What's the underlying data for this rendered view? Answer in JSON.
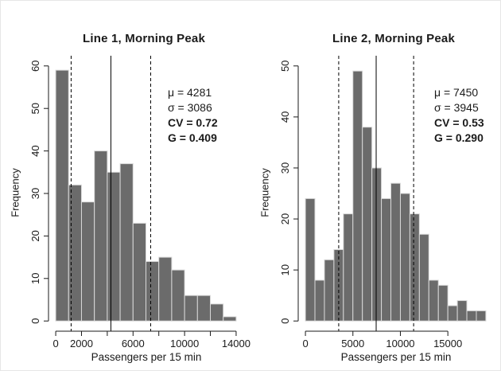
{
  "figure_name": "morning-peak-histograms",
  "colors": {
    "bar_fill": "#6b6b6b",
    "bar_border": "#d9d9d9",
    "axis": "#1a1a1a",
    "stat_line": "#000000",
    "background": "#ffffff"
  },
  "chart_data": [
    {
      "type": "bar",
      "subtype": "histogram",
      "title": "Line 1, Morning Peak",
      "xlabel": "Passengers per 15 min",
      "ylabel": "Frequency",
      "bin_start": 0,
      "bin_width": 1000,
      "counts": [
        59,
        32,
        28,
        40,
        35,
        37,
        23,
        14,
        15,
        12,
        6,
        6,
        4,
        1
      ],
      "x_data_max": 14000,
      "ylim": [
        0,
        60
      ],
      "yticks": [
        {
          "v": 0,
          "label": "0"
        },
        {
          "v": 10,
          "label": "10"
        },
        {
          "v": 20,
          "label": "20"
        },
        {
          "v": 30,
          "label": "30"
        },
        {
          "v": 40,
          "label": "40"
        },
        {
          "v": 50,
          "label": "50"
        },
        {
          "v": 60,
          "label": "60"
        }
      ],
      "xticks": [
        {
          "v": 0,
          "label": "0"
        },
        {
          "v": 2000,
          "label": "2000"
        },
        {
          "v": 4000,
          "label": ""
        },
        {
          "v": 6000,
          "label": "6000"
        },
        {
          "v": 8000,
          "label": ""
        },
        {
          "v": 10000,
          "label": "10000"
        },
        {
          "v": 12000,
          "label": ""
        },
        {
          "v": 14000,
          "label": "14000"
        }
      ],
      "mean": 4281,
      "sd": 3086,
      "stats_lines": [
        {
          "text": "μ = 4281",
          "bold": false
        },
        {
          "text": "σ = 3086",
          "bold": false
        },
        {
          "text": "CV = 0.72",
          "bold": true
        },
        {
          "text": "G = 0.409",
          "bold": true
        }
      ],
      "grid": false,
      "legend": "none"
    },
    {
      "type": "bar",
      "subtype": "histogram",
      "title": "Line 2, Morning Peak",
      "xlabel": "Passengers per 15 min",
      "ylabel": "Frequency",
      "bin_start": 0,
      "bin_width": 1000,
      "counts": [
        24,
        8,
        12,
        14,
        21,
        49,
        38,
        30,
        24,
        27,
        25,
        21,
        17,
        8,
        7,
        3,
        4,
        2,
        2
      ],
      "x_data_max": 19000,
      "ylim": [
        0,
        50
      ],
      "yticks": [
        {
          "v": 0,
          "label": "0"
        },
        {
          "v": 10,
          "label": "10"
        },
        {
          "v": 20,
          "label": "20"
        },
        {
          "v": 30,
          "label": "30"
        },
        {
          "v": 40,
          "label": "40"
        },
        {
          "v": 50,
          "label": "50"
        }
      ],
      "xticks": [
        {
          "v": 0,
          "label": "0"
        },
        {
          "v": 5000,
          "label": "5000"
        },
        {
          "v": 10000,
          "label": "10000"
        },
        {
          "v": 15000,
          "label": "15000"
        }
      ],
      "mean": 7450,
      "sd": 3945,
      "stats_lines": [
        {
          "text": "μ = 7450",
          "bold": false
        },
        {
          "text": "σ = 3945",
          "bold": false
        },
        {
          "text": "CV = 0.53",
          "bold": true
        },
        {
          "text": "G = 0.290",
          "bold": true
        }
      ],
      "grid": false,
      "legend": "none"
    }
  ]
}
